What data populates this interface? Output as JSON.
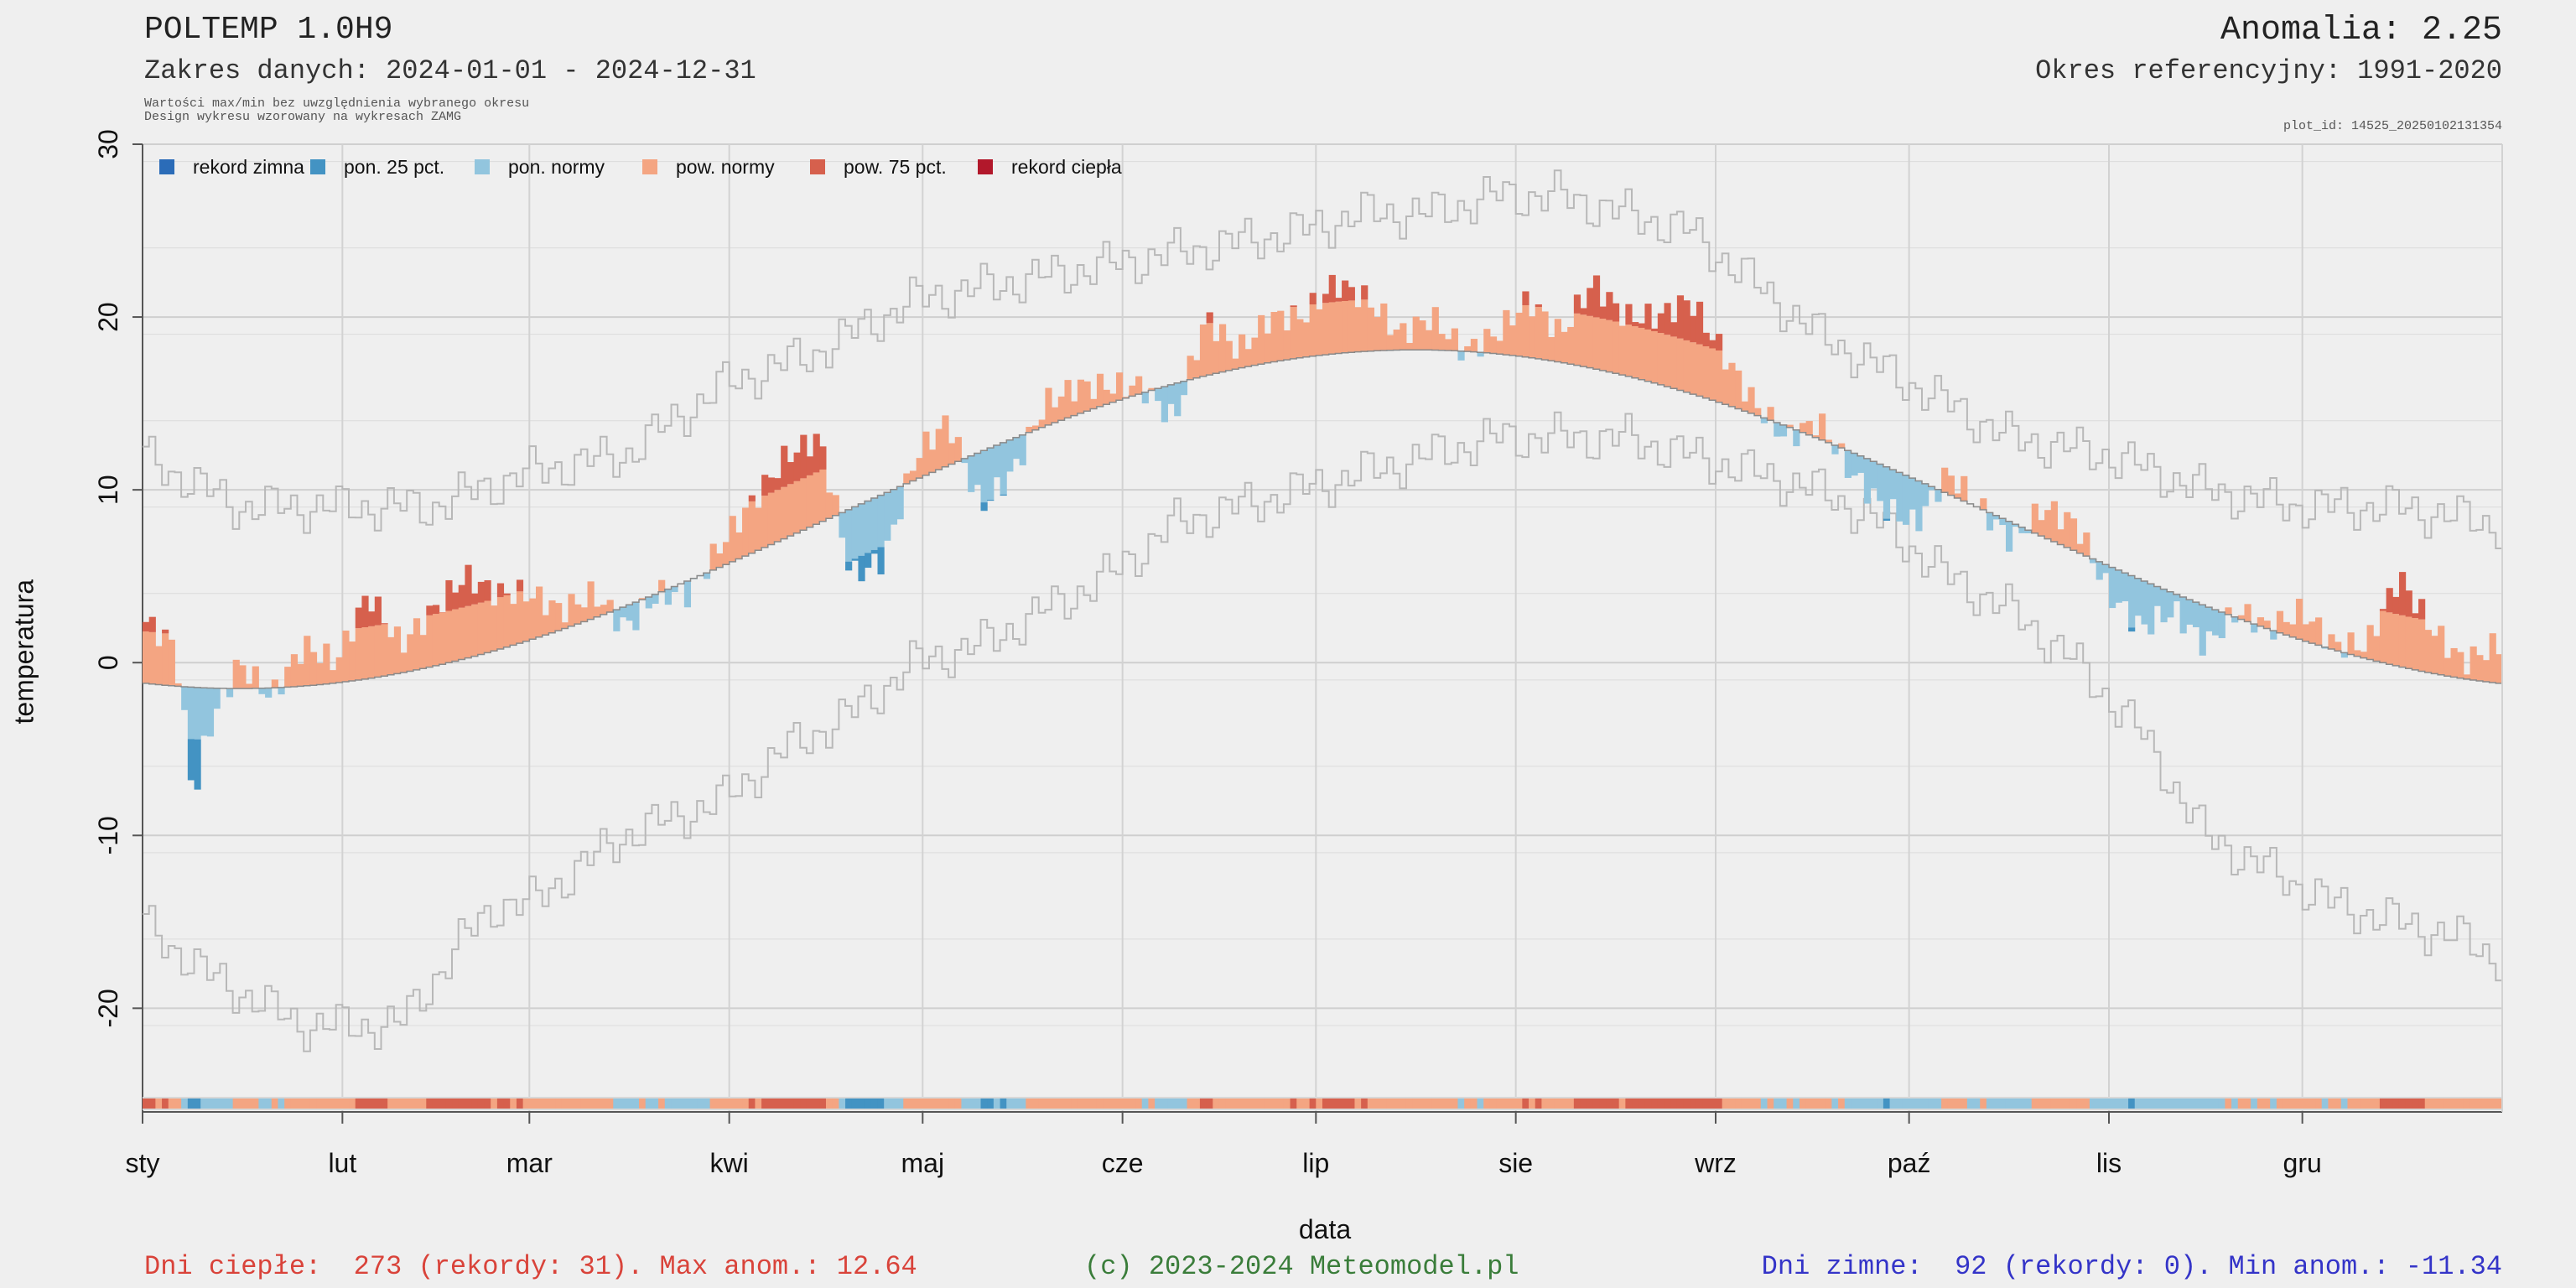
{
  "header": {
    "title": "POLTEMP 1.0H9",
    "range": "Zakres danych: 2024-01-01 - 2024-12-31",
    "note1": "Wartości max/min bez uwzględnienia wybranego okresu",
    "note2": "Design wykresu wzorowany na wykresach ZAMG",
    "anomaly": "Anomalia: 2.25",
    "reference": "Okres referencyjny: 1991-2020",
    "plot_id": "plot_id: 14525_20250102131354"
  },
  "footer": {
    "warm": "Dni ciepłe:  273 (rekordy: 31). Max anom.: 12.64",
    "copyright": "(c) 2023-2024 Meteomodel.pl",
    "cold": "Dni zimne:  92 (rekordy: 0). Min anom.: -11.34"
  },
  "chart_data": {
    "type": "area",
    "title": "POLTEMP 1.0H9",
    "xlabel": "data",
    "ylabel": "temperatura",
    "ylim": [
      -26,
      30
    ],
    "yticks": [
      -20,
      -10,
      0,
      10,
      20,
      30
    ],
    "xlim_days": [
      0,
      366
    ],
    "grid": true,
    "legend_position": "top-left",
    "months": [
      {
        "label": "sty",
        "day": 0
      },
      {
        "label": "lut",
        "day": 31
      },
      {
        "label": "mar",
        "day": 60
      },
      {
        "label": "kwi",
        "day": 91
      },
      {
        "label": "maj",
        "day": 121
      },
      {
        "label": "cze",
        "day": 152
      },
      {
        "label": "lip",
        "day": 182
      },
      {
        "label": "sie",
        "day": 213
      },
      {
        "label": "wrz",
        "day": 244
      },
      {
        "label": "paź",
        "day": 274
      },
      {
        "label": "lis",
        "day": 305
      },
      {
        "label": "gru",
        "day": 335
      }
    ],
    "legend": [
      {
        "key": "rekord_zimna",
        "label": "rekord zimna",
        "color": "#2b6cb8"
      },
      {
        "key": "pon25",
        "label": "pon. 25 pct.",
        "color": "#4393c3"
      },
      {
        "key": "pon_normy",
        "label": "pon. normy",
        "color": "#92c5de"
      },
      {
        "key": "pow_normy",
        "label": "pow. normy",
        "color": "#f4a582"
      },
      {
        "key": "pow75",
        "label": "pow. 75 pct.",
        "color": "#d6604d"
      },
      {
        "key": "rekord_ciepla",
        "label": "rekord ciepła",
        "color": "#b2182b"
      }
    ],
    "normal_climatology": {
      "mean": 8.3,
      "amplitude": 9.8,
      "min_day": 15
    },
    "series": [
      {
        "name": "max rekord",
        "x": [
          0,
          15,
          30,
          45,
          60,
          75,
          90,
          105,
          120,
          135,
          150,
          165,
          180,
          190,
          200,
          210,
          220,
          230,
          240,
          250,
          260,
          275,
          290,
          305,
          320,
          335,
          350,
          365
        ],
        "values": [
          12,
          9,
          9,
          9,
          11,
          12,
          16,
          18,
          21,
          22,
          23,
          24,
          25,
          26,
          26,
          27,
          27,
          26,
          25,
          22,
          19,
          16,
          13,
          12,
          10,
          9,
          9,
          8
        ]
      },
      {
        "name": "min rekord",
        "x": [
          0,
          10,
          25,
          40,
          50,
          55,
          60,
          75,
          90,
          100,
          110,
          120,
          130,
          140,
          150,
          160,
          170,
          180,
          190,
          200,
          210,
          220,
          230,
          240,
          250,
          260,
          270,
          280,
          290,
          300,
          310,
          320,
          330,
          340,
          350,
          360,
          365
        ],
        "values": [
          -15,
          -18,
          -21,
          -21,
          -16,
          -14,
          -14,
          -10,
          -8,
          -5,
          -3,
          0,
          1,
          3,
          5,
          8,
          9,
          10,
          11,
          12,
          13,
          13,
          13,
          12,
          11,
          10,
          8,
          5,
          3,
          0,
          -4,
          -10,
          -12,
          -14,
          -15,
          -16,
          -17
        ]
      },
      {
        "name": "temperatura",
        "x": [
          0,
          5,
          8,
          10,
          15,
          20,
          25,
          30,
          35,
          40,
          45,
          50,
          55,
          60,
          65,
          70,
          75,
          80,
          85,
          90,
          94,
          100,
          105,
          110,
          115,
          120,
          125,
          130,
          135,
          140,
          145,
          150,
          155,
          160,
          165,
          170,
          175,
          180,
          185,
          190,
          195,
          200,
          205,
          210,
          215,
          220,
          225,
          230,
          235,
          240,
          245,
          250,
          255,
          260,
          265,
          270,
          275,
          280,
          285,
          290,
          295,
          300,
          305,
          310,
          315,
          320,
          325,
          330,
          335,
          340,
          345,
          350,
          355,
          360,
          365
        ],
        "values": [
          2.5,
          1,
          -8,
          -4,
          0,
          -2,
          1,
          0,
          4,
          1,
          3,
          5,
          4,
          4,
          3,
          4,
          2,
          4,
          4,
          7,
          9,
          12,
          13,
          5,
          6,
          12,
          14,
          9,
          11,
          15,
          16,
          16,
          16,
          14,
          20,
          18,
          20,
          20,
          22,
          21,
          19,
          20,
          18,
          19,
          21,
          19,
          22,
          20,
          20,
          21,
          18,
          15,
          13,
          14,
          11,
          9,
          8,
          11,
          9,
          7,
          9,
          8,
          4,
          2,
          3,
          1,
          3,
          2,
          3,
          1,
          1,
          5,
          2,
          0,
          1
        ]
      }
    ]
  }
}
